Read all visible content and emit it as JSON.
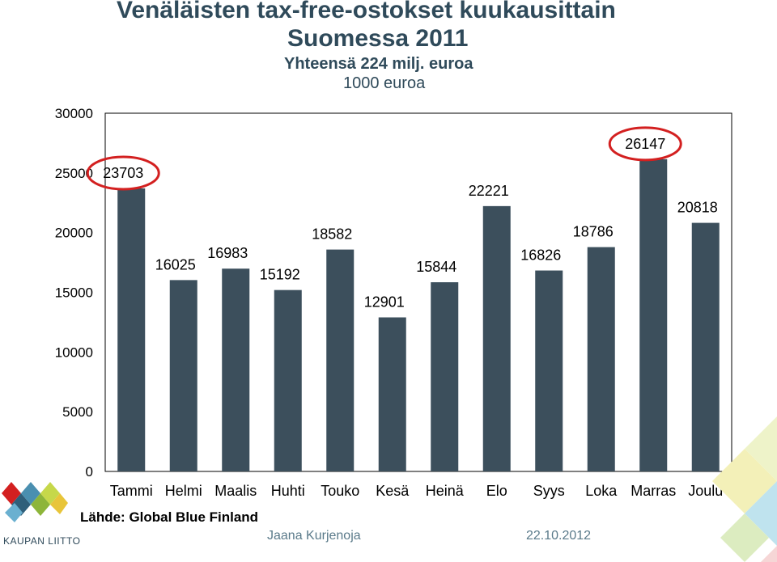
{
  "header": {
    "title_line1": "Venäläisten tax-free-ostokset kuukausittain",
    "title_line2": "Suomessa 2011",
    "subtitle": "Yhteensä 224 milj. euroa",
    "unit": "1000 euroa"
  },
  "footer": {
    "source": "Lähde: Global Blue Finland",
    "author": "Jaana Kurjenoja",
    "date": "22.10.2012",
    "logo_text": "KAUPAN LIITTO"
  },
  "colors": {
    "bar": "#3c4f5c",
    "highlight_circle": "#d32020",
    "title": "#2f4a5a"
  },
  "chart_data": {
    "type": "bar",
    "categories": [
      "Tammi",
      "Helmi",
      "Maalis",
      "Huhti",
      "Touko",
      "Kesä",
      "Heinä",
      "Elo",
      "Syys",
      "Loka",
      "Marras",
      "Joulu"
    ],
    "values": [
      23703,
      16025,
      16983,
      15192,
      18582,
      12901,
      15844,
      22221,
      16826,
      18786,
      26147,
      20818
    ],
    "data_labels": [
      "23703",
      "16025",
      "16983",
      "15192",
      "18582",
      "12901",
      "15844",
      "22221",
      "16826",
      "18786",
      "26147",
      "20818"
    ],
    "highlighted_categories": [
      "Tammi",
      "Marras"
    ],
    "ylim": [
      0,
      30000
    ],
    "yticks": [
      0,
      5000,
      10000,
      15000,
      20000,
      25000,
      30000
    ],
    "ytick_labels": [
      "0",
      "5000",
      "10000",
      "15000",
      "20000",
      "25000",
      "30000"
    ],
    "grid": false,
    "legend": "none"
  }
}
